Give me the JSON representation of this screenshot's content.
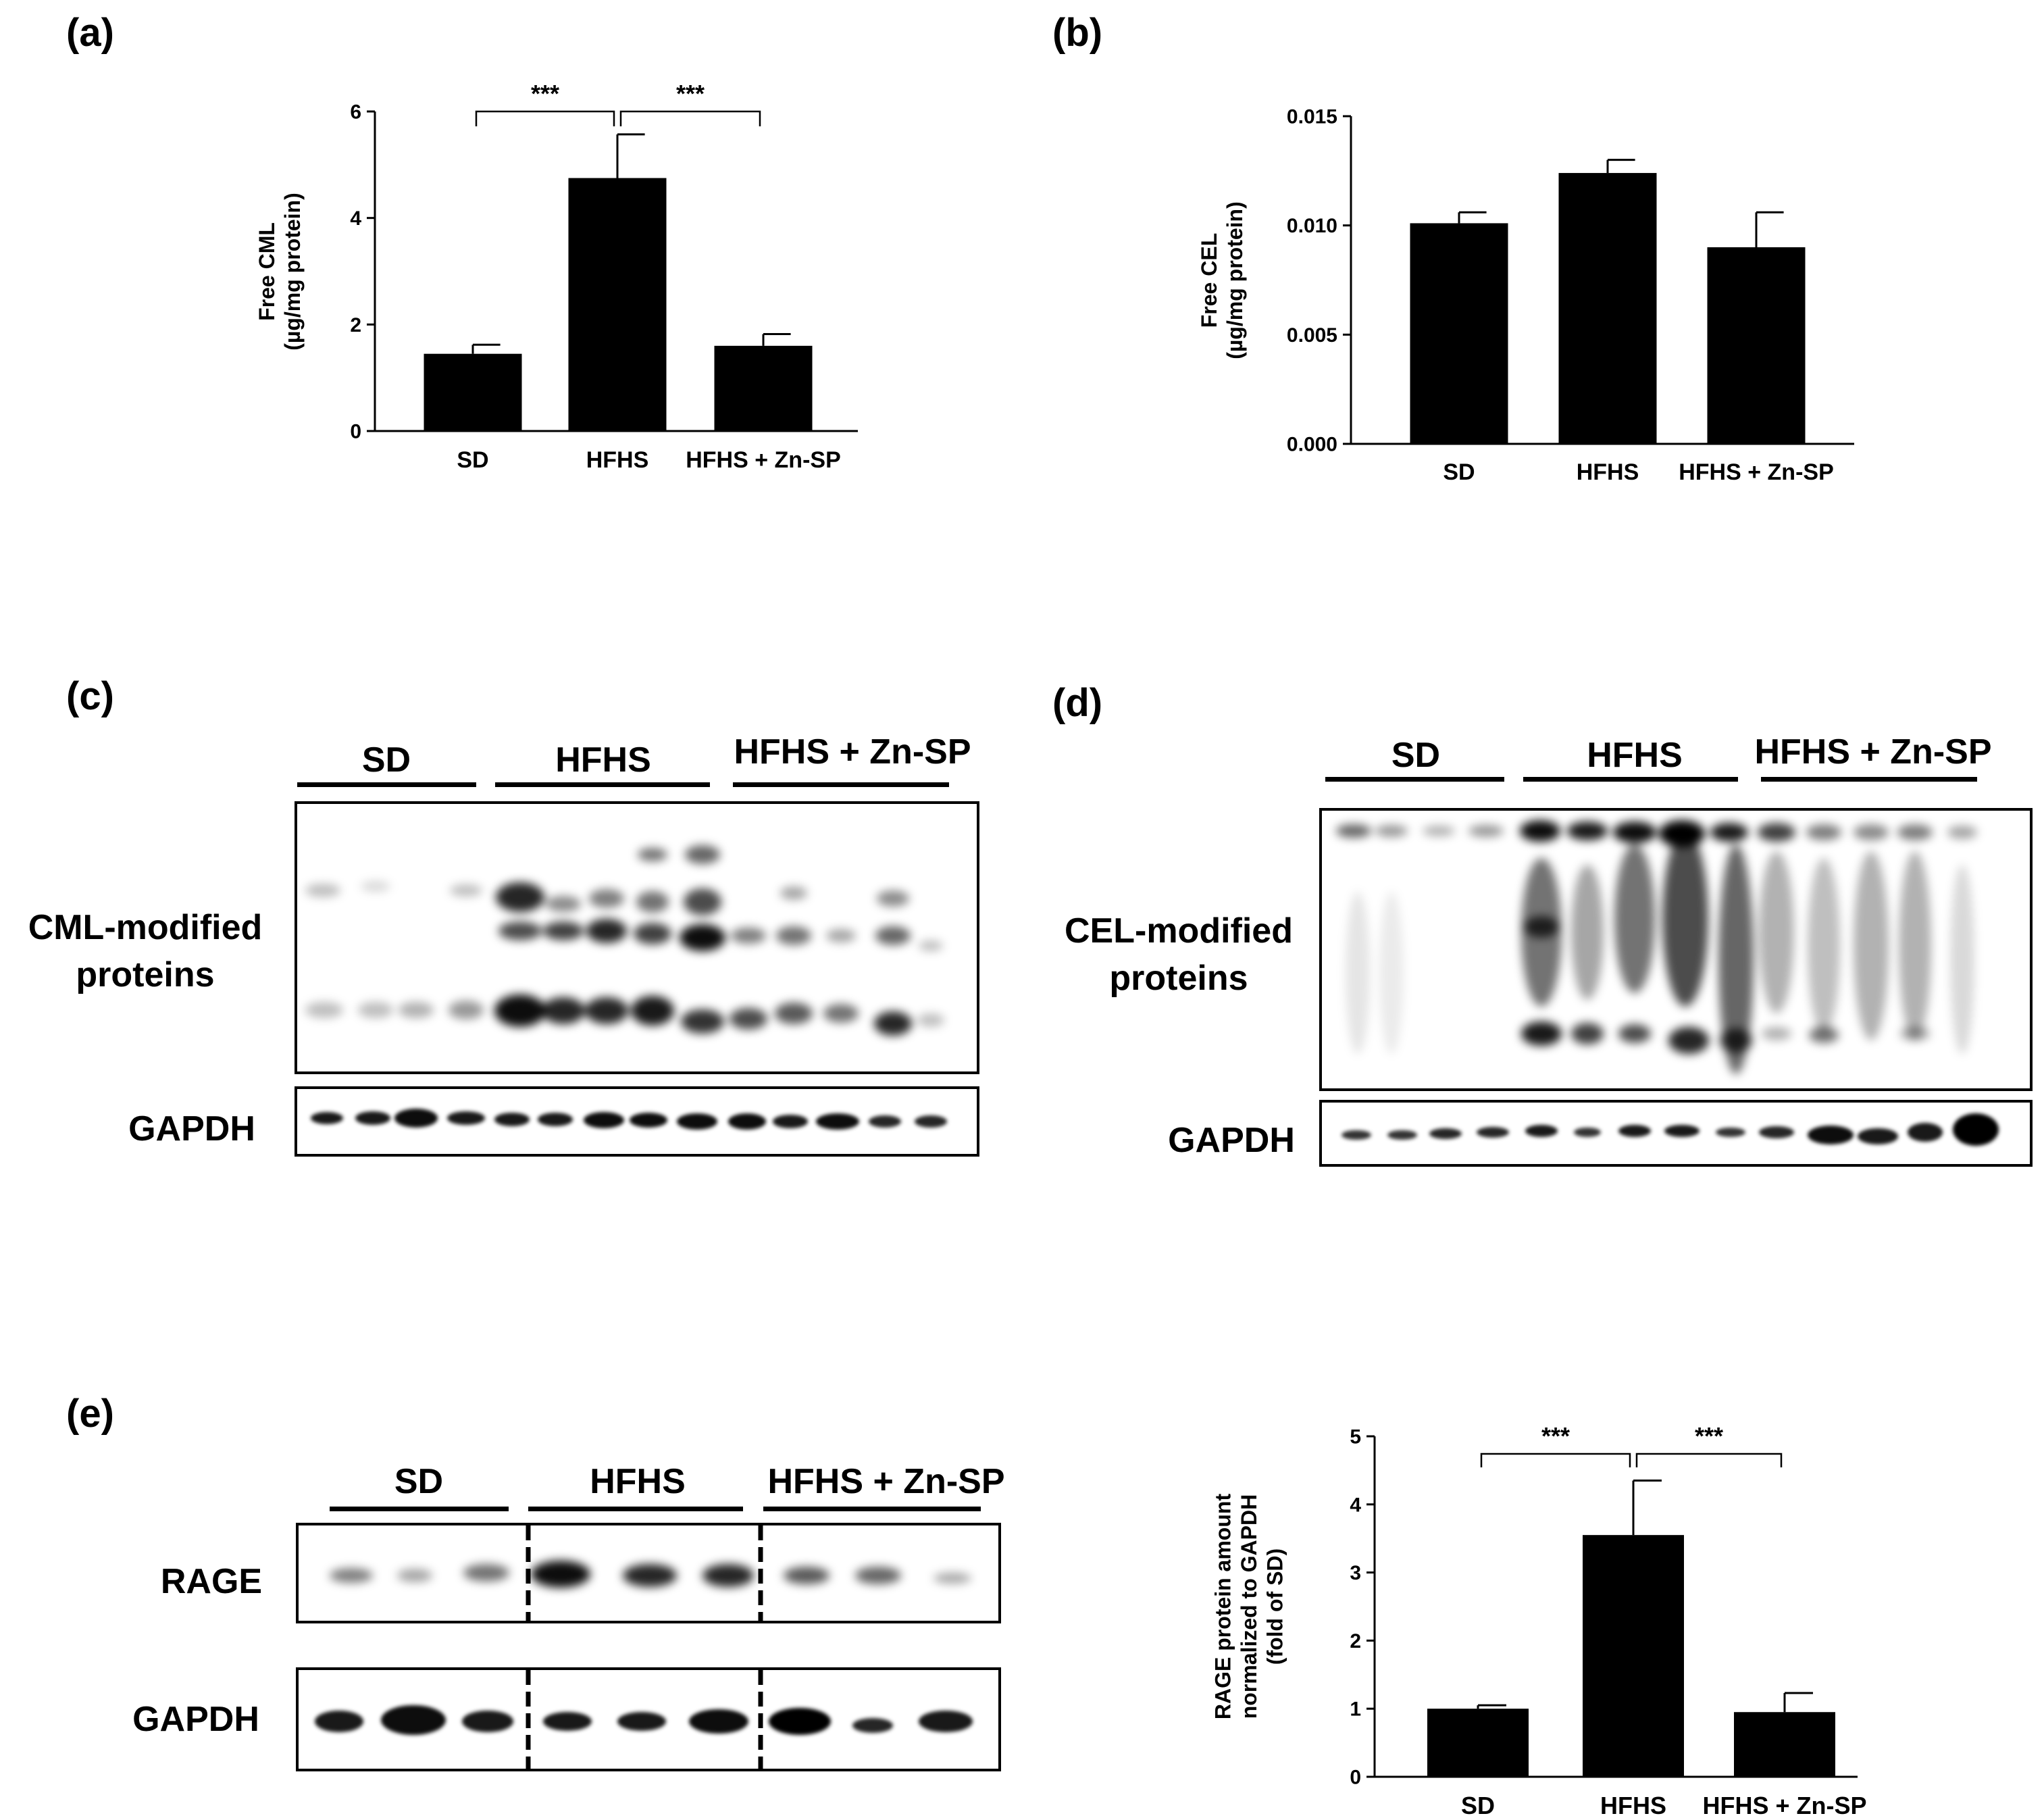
{
  "panels": {
    "a": {
      "label": "(a)"
    },
    "b": {
      "label": "(b)"
    },
    "c": {
      "label": "(c)",
      "groups": [
        "SD",
        "HFHS",
        "HFHS + Zn-SP"
      ],
      "row1": [
        "CML-modified",
        "proteins"
      ],
      "row2": "GAPDH"
    },
    "d": {
      "label": "(d)",
      "groups": [
        "SD",
        "HFHS",
        "HFHS + Zn-SP"
      ],
      "row1": [
        "CEL-modified",
        "proteins"
      ],
      "row2": "GAPDH"
    },
    "e": {
      "label": "(e)",
      "groups": [
        "SD",
        "HFHS",
        "HFHS + Zn-SP"
      ],
      "row1": "RAGE",
      "row2": "GAPDH"
    }
  },
  "chart_data": [
    {
      "id": "a",
      "type": "bar",
      "categories": [
        "SD",
        "HFHS",
        "HFHS + Zn-SP"
      ],
      "values": [
        1.45,
        4.75,
        1.6
      ],
      "errors": [
        0.17,
        0.82,
        0.22
      ],
      "ylabel": [
        "Free CML",
        "(µg/mg protein)"
      ],
      "ylim": [
        0,
        6
      ],
      "yticks": [
        0,
        2,
        4,
        6
      ],
      "ytick_labels": [
        "0",
        "2",
        "4",
        "6"
      ],
      "significance": [
        {
          "from": 0,
          "to": 1,
          "label": "***"
        },
        {
          "from": 1,
          "to": 2,
          "label": "***"
        }
      ],
      "bar_color": "#000000"
    },
    {
      "id": "b",
      "type": "bar",
      "categories": [
        "SD",
        "HFHS",
        "HFHS + Zn-SP"
      ],
      "values": [
        0.0101,
        0.0124,
        0.009
      ],
      "errors": [
        0.0005,
        0.0006,
        0.0016
      ],
      "ylabel": [
        "Free CEL",
        "(µg/mg protein)"
      ],
      "ylim": [
        0,
        0.015
      ],
      "yticks": [
        0,
        0.005,
        0.01,
        0.015
      ],
      "ytick_labels": [
        "0.000",
        "0.005",
        "0.010",
        "0.015"
      ],
      "significance": [],
      "bar_color": "#000000"
    },
    {
      "id": "e",
      "type": "bar",
      "categories": [
        "SD",
        "HFHS",
        "HFHS + Zn-SP"
      ],
      "values": [
        1.0,
        3.55,
        0.95
      ],
      "errors": [
        0.05,
        0.8,
        0.28
      ],
      "ylabel": [
        "RAGE protein amount",
        "normalized to GAPDH",
        "(fold of SD)"
      ],
      "ylim": [
        0,
        5
      ],
      "yticks": [
        0,
        1,
        2,
        3,
        4,
        5
      ],
      "ytick_labels": [
        "0",
        "1",
        "2",
        "3",
        "4",
        "5"
      ],
      "significance": [
        {
          "from": 0,
          "to": 1,
          "label": "***"
        },
        {
          "from": 1,
          "to": 2,
          "label": "***"
        }
      ],
      "bar_color": "#000000"
    }
  ]
}
